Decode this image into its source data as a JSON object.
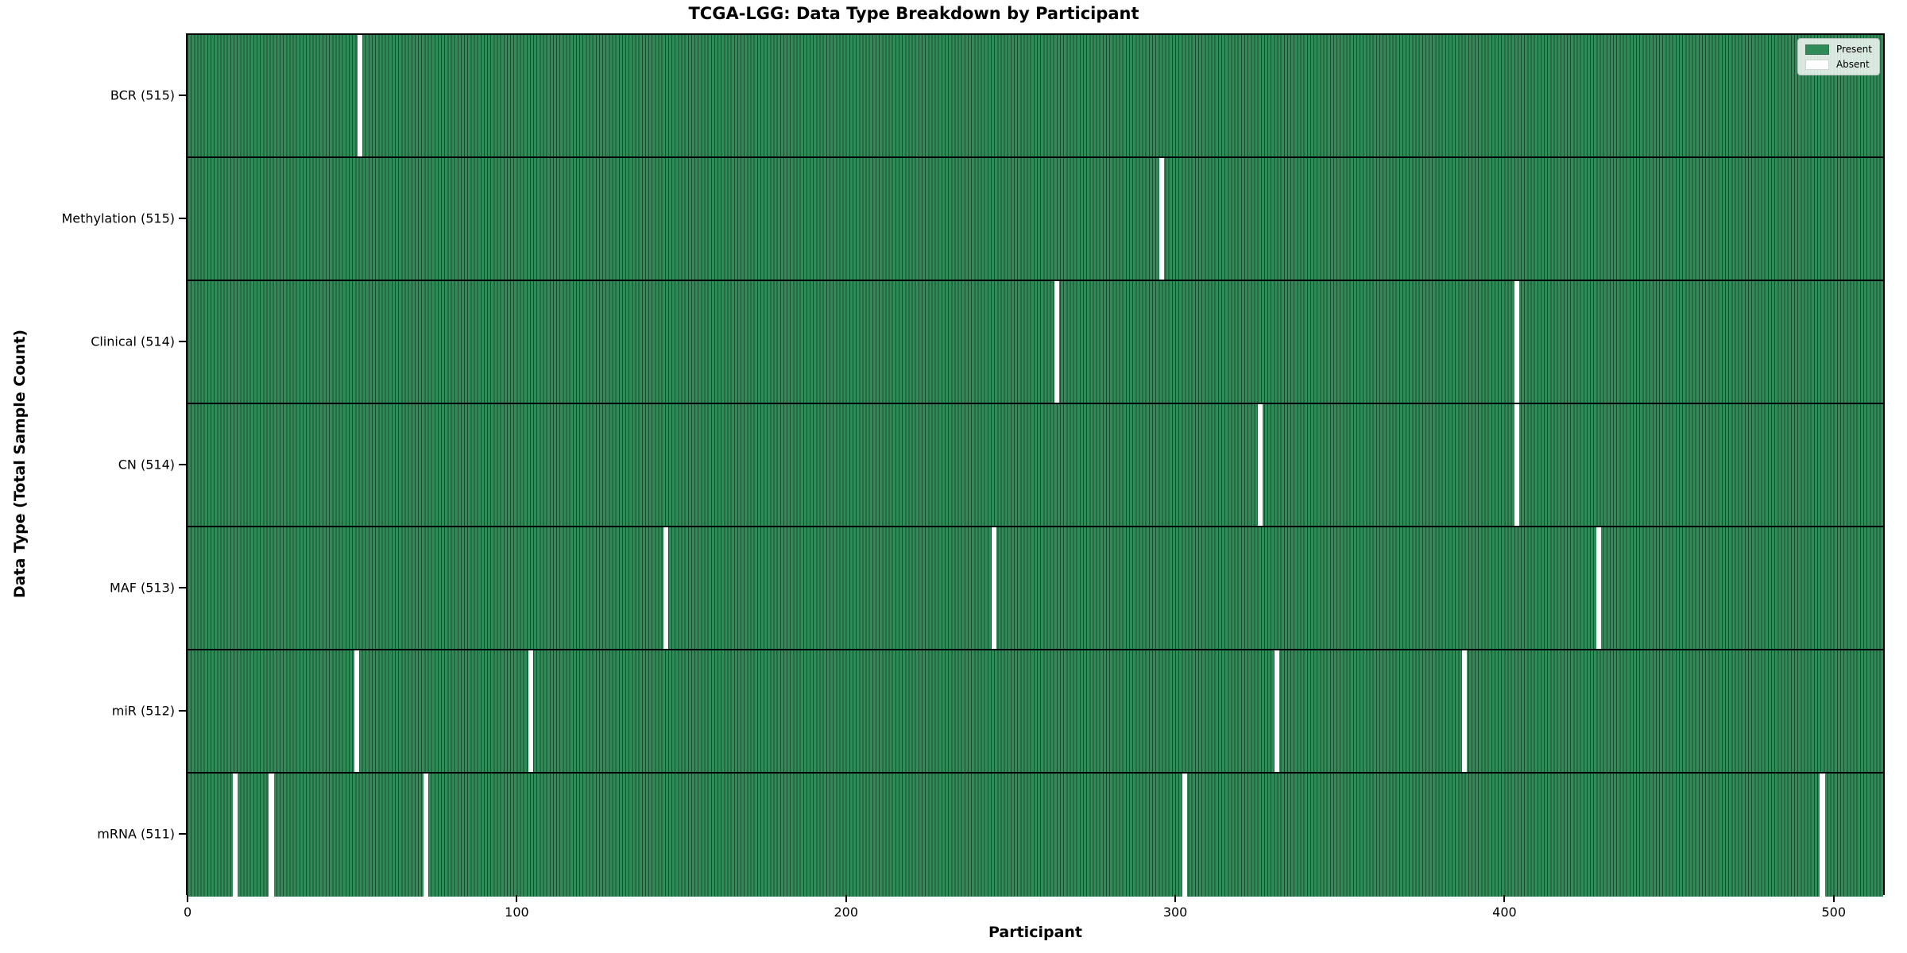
{
  "chart_data": {
    "type": "heatmap",
    "title": "TCGA-LGG: Data Type Breakdown by Participant",
    "xlabel": "Participant",
    "ylabel": "Data Type (Total Sample Count)",
    "x_ticks": [
      0,
      100,
      200,
      300,
      400,
      500
    ],
    "n_participants": 516,
    "xlim": [
      0,
      516
    ],
    "grid": false,
    "legend_position": "upper right",
    "present_color": "#2f8b58",
    "absent_color": "#ffffff",
    "bar_edge_color": "#1c4b30",
    "legend": [
      {
        "label": "Present",
        "color": "#2f8b58"
      },
      {
        "label": "Absent",
        "color": "#ffffff"
      }
    ],
    "rows": [
      {
        "label": "BCR (515)",
        "total": 515,
        "absent_participants": [
          52
        ]
      },
      {
        "label": "Methylation (515)",
        "total": 515,
        "absent_participants": [
          296
        ]
      },
      {
        "label": "Clinical (514)",
        "total": 514,
        "absent_participants": [
          264,
          404
        ]
      },
      {
        "label": "CN (514)",
        "total": 514,
        "absent_participants": [
          326,
          404
        ]
      },
      {
        "label": "MAF (513)",
        "total": 513,
        "absent_participants": [
          145,
          245,
          429
        ]
      },
      {
        "label": "miR (512)",
        "total": 512,
        "absent_participants": [
          51,
          104,
          331,
          388
        ]
      },
      {
        "label": "mRNA (511)",
        "total": 511,
        "absent_participants": [
          14,
          25,
          72,
          303,
          497
        ]
      }
    ]
  }
}
